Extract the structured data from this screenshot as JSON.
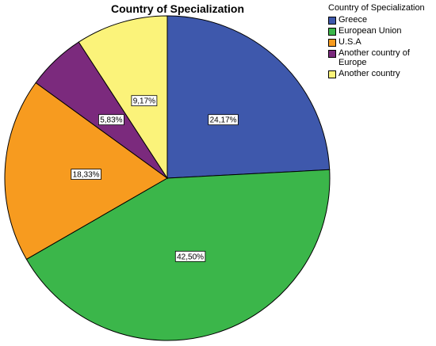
{
  "chart_data": {
    "type": "pie",
    "title": "Country of Specialization",
    "legend_title": "Country of Specialization",
    "legend_position": "top-right",
    "start_angle_deg": 0,
    "direction": "clockwise",
    "slices": [
      {
        "label": "Greece",
        "value": 24.17,
        "display": "24,17%",
        "color": "#3e58ac"
      },
      {
        "label": "European Union",
        "value": 42.5,
        "display": "42,50%",
        "color": "#3bb64a"
      },
      {
        "label": "U.S.A",
        "value": 18.33,
        "display": "18,33%",
        "color": "#f79b1f"
      },
      {
        "label": "Another country of Europe",
        "value": 5.83,
        "display": "5,83%",
        "color": "#7b2a7d"
      },
      {
        "label": "Another country",
        "value": 9.17,
        "display": "9,17%",
        "color": "#fbf37a"
      }
    ]
  }
}
